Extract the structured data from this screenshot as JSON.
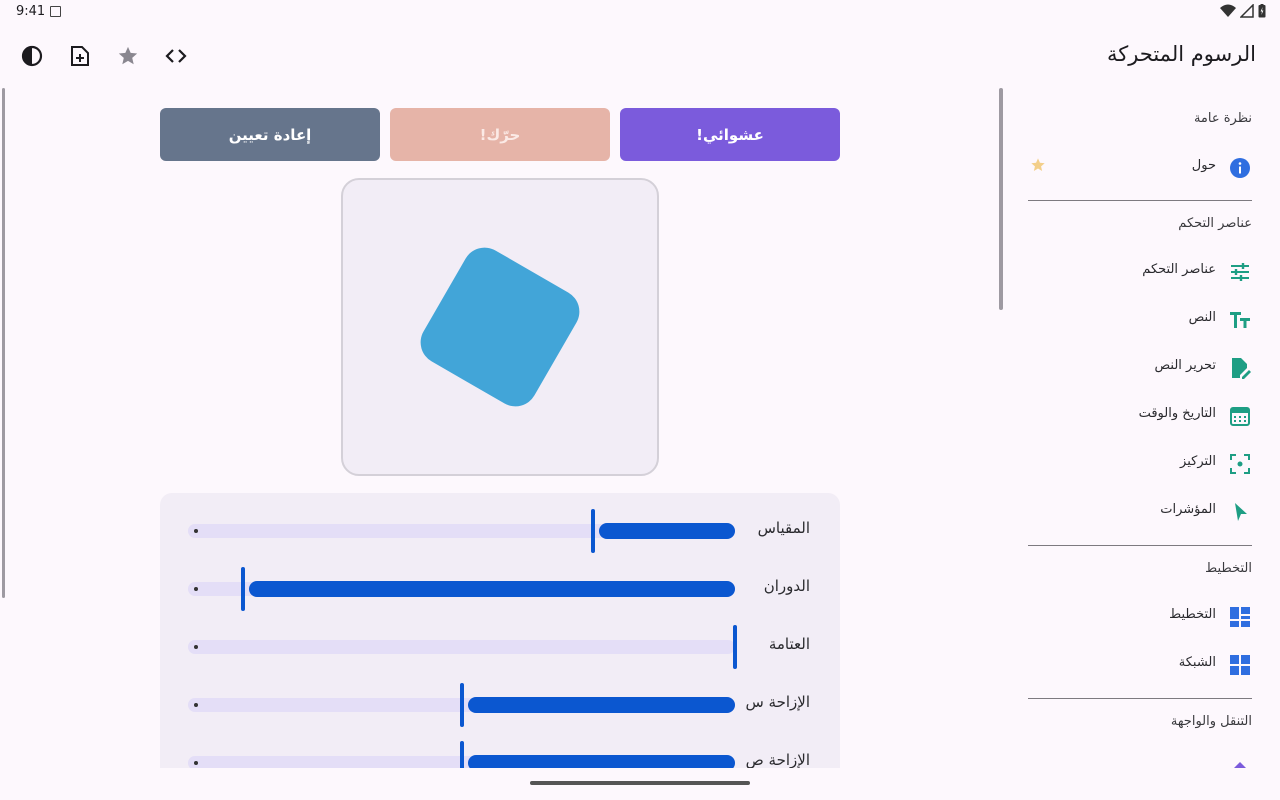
{
  "status": {
    "time": "9:41"
  },
  "app": {
    "title": "الرسوم المتحركة"
  },
  "toolbar": {
    "icons": [
      "theme-contrast-icon",
      "new-file-icon",
      "star-icon",
      "code-icon"
    ]
  },
  "buttons": {
    "random": "عشوائي!",
    "move": "حرّك!",
    "reset": "إعادة تعيين"
  },
  "colors": {
    "random_btn": "#7b5bdc",
    "move_btn": "#e6b4a8",
    "reset_btn": "#66758c",
    "shape": "#42a5d8",
    "slider_active": "#0b57d0",
    "nav_icon": "#1e9e84"
  },
  "sliders": [
    {
      "label": "المقياس",
      "value": 0.26
    },
    {
      "label": "الدوران",
      "value": 0.9
    },
    {
      "label": "العتامة",
      "value": 0.0
    },
    {
      "label": "الإزاحة س",
      "value": 0.5
    },
    {
      "label": "الإزاحة ص",
      "value": 0.5
    }
  ],
  "nav": {
    "sections": [
      {
        "header": "نظرة عامة",
        "items": [
          {
            "label": "حول",
            "icon": "info-icon"
          }
        ]
      },
      {
        "header": "عناصر التحكم",
        "items": [
          {
            "label": "عناصر التحكم",
            "icon": "tune-icon"
          },
          {
            "label": "النص",
            "icon": "text-fields-icon"
          },
          {
            "label": "تحرير النص",
            "icon": "edit-document-icon"
          },
          {
            "label": "التاريخ والوقت",
            "icon": "calendar-icon"
          },
          {
            "label": "التركيز",
            "icon": "focus-icon"
          },
          {
            "label": "المؤشرات",
            "icon": "pointer-icon"
          }
        ]
      },
      {
        "header": "التخطيط",
        "items": [
          {
            "label": "التخطيط",
            "icon": "dashboard-icon"
          },
          {
            "label": "الشبكة",
            "icon": "grid-icon"
          }
        ]
      },
      {
        "header": "التنقل والواجهة",
        "items": []
      }
    ]
  }
}
